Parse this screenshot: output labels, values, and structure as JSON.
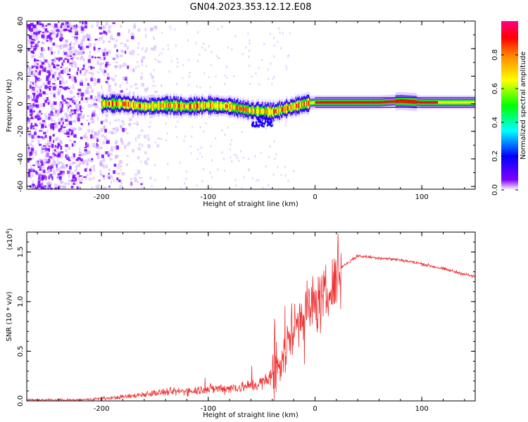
{
  "title": "GN04.2023.353.12.12.E08",
  "chart_data": [
    {
      "type": "heatmap",
      "name": "spectrogram",
      "xlabel": "Height of straight line (km)",
      "ylabel": "Frequency (Hz)",
      "xlim": [
        -270,
        150
      ],
      "ylim": [
        -62,
        60
      ],
      "x_ticks": [
        -200,
        -100,
        0,
        100
      ],
      "x_tick_labels": [
        "-200",
        "-100",
        "0",
        "100"
      ],
      "y_ticks": [
        -60,
        -40,
        -20,
        0,
        20,
        40,
        60
      ],
      "y_tick_labels": [
        "-60",
        "-40",
        "-20",
        "0",
        "20",
        "40",
        "60"
      ],
      "colorbar": {
        "label": "Normalized spectral amplitude",
        "range": [
          0,
          1
        ],
        "ticks": [
          0,
          0.2,
          0.4,
          0.6,
          0.8
        ],
        "tick_labels": [
          "0.0",
          "0.2",
          "0.4",
          "0.6",
          "0.8"
        ],
        "colormap": [
          "#ffffff",
          "#8000ff",
          "#0000ff",
          "#00ffff",
          "#00ff00",
          "#ffff00",
          "#ff8000",
          "#ff0000",
          "#ff0080"
        ]
      },
      "noise_region_x": [
        -270,
        -160
      ],
      "line_center_freq": [
        [
          -200,
          0
        ],
        [
          -180,
          0
        ],
        [
          -160,
          -2
        ],
        [
          -140,
          -1
        ],
        [
          -120,
          -2
        ],
        [
          -100,
          -1
        ],
        [
          -80,
          -2
        ],
        [
          -60,
          -5
        ],
        [
          -40,
          -6
        ],
        [
          -20,
          -2
        ],
        [
          -10,
          0
        ],
        [
          0,
          1
        ],
        [
          20,
          1
        ],
        [
          40,
          1
        ],
        [
          60,
          1
        ],
        [
          80,
          2
        ],
        [
          100,
          1
        ],
        [
          120,
          1
        ],
        [
          150,
          1
        ]
      ]
    },
    {
      "type": "line",
      "name": "snr",
      "xlabel": "Height of straight line (km)",
      "ylabel": "SNR (10 * v/v)",
      "y_multiplier_label": "(x10",
      "y_multiplier_exp": "4",
      "xlim": [
        -270,
        150
      ],
      "ylim": [
        0,
        1.7
      ],
      "x_ticks": [
        -200,
        -100,
        0,
        100
      ],
      "x_tick_labels": [
        "-200",
        "-100",
        "0",
        "100"
      ],
      "y_ticks": [
        0,
        0.5,
        1.0,
        1.5
      ],
      "y_tick_labels": [
        "0.0",
        "0.5",
        "1.0",
        "1.5"
      ],
      "color": "#ee3333",
      "trend": {
        "x": [
          -270,
          -220,
          -190,
          -170,
          -160,
          -150,
          -120,
          -100,
          -80,
          -60,
          -45,
          -35,
          -25,
          -15,
          -5,
          5,
          15,
          25,
          40,
          60,
          80,
          100,
          120,
          150
        ],
        "y": [
          0.01,
          0.01,
          0.03,
          0.05,
          0.07,
          0.08,
          0.1,
          0.12,
          0.13,
          0.15,
          0.2,
          0.35,
          0.6,
          0.85,
          0.95,
          1.0,
          1.1,
          1.35,
          1.46,
          1.44,
          1.42,
          1.38,
          1.33,
          1.25
        ]
      }
    }
  ]
}
